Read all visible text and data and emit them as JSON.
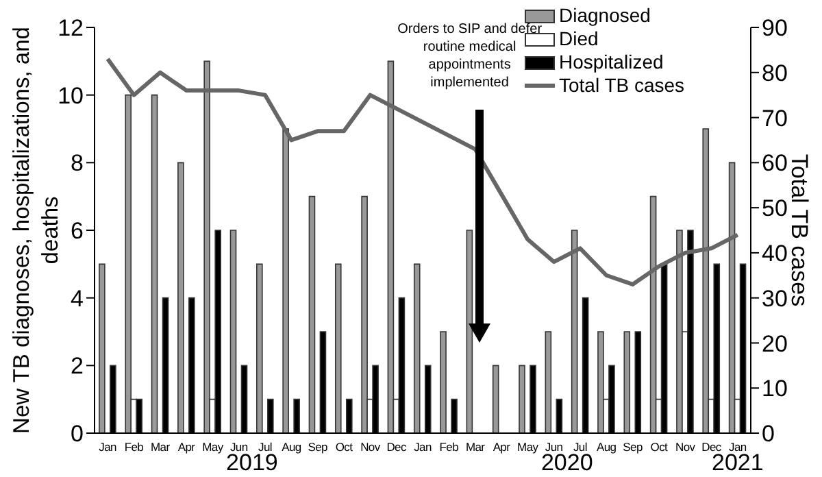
{
  "chart_data": {
    "type": "bar",
    "ylabel": "New TB diagnoses, hospitalizations, and deaths",
    "y2label": "Total TB cases",
    "categories": [
      "Jan",
      "Feb",
      "Mar",
      "Apr",
      "May",
      "Jun",
      "Jul",
      "Aug",
      "Sep",
      "Oct",
      "Nov",
      "Dec",
      "Jan",
      "Feb",
      "Mar",
      "Apr",
      "May",
      "Jun",
      "Jul",
      "Aug",
      "Sep",
      "Oct",
      "Nov",
      "Dec",
      "Jan"
    ],
    "series": [
      {
        "name": "Diagnosed",
        "color": "#999999",
        "values": [
          5,
          10,
          10,
          8,
          11,
          6,
          5,
          9,
          7,
          5,
          7,
          11,
          5,
          3,
          6,
          2,
          2,
          3,
          6,
          3,
          3,
          7,
          6,
          9,
          8
        ]
      },
      {
        "name": "Died",
        "color": "#ffffff",
        "values": [
          0,
          1,
          0,
          0,
          1,
          0,
          0,
          0,
          0,
          0,
          1,
          1,
          0,
          0,
          0,
          0,
          0,
          0,
          0,
          1,
          0,
          1,
          3,
          1,
          1
        ]
      },
      {
        "name": "Hospitalized",
        "color": "#000000",
        "values": [
          2,
          1,
          4,
          4,
          6,
          2,
          1,
          1,
          3,
          1,
          2,
          4,
          2,
          1,
          0,
          0,
          2,
          1,
          4,
          2,
          3,
          5,
          6,
          5,
          5
        ]
      },
      {
        "name": "Total TB cases",
        "type": "line",
        "axis": "y2",
        "color": "#666666",
        "values": [
          83,
          75,
          80,
          76,
          76,
          76,
          75,
          65,
          67,
          67,
          75,
          72,
          69,
          66,
          63,
          53,
          43,
          38,
          41,
          35,
          33,
          37,
          40,
          41,
          44
        ]
      }
    ],
    "ylim": [
      0,
      12
    ],
    "yticks": [
      0,
      2,
      4,
      6,
      8,
      10,
      12
    ],
    "y2lim": [
      0,
      90
    ],
    "y2ticks": [
      0,
      10,
      20,
      30,
      40,
      50,
      60,
      70,
      80,
      90
    ],
    "grid": false,
    "legend": "top right",
    "marker": "none",
    "line_style": "solid",
    "annotations": [
      "Orders to SIP and defer routine medical appointments implemented",
      "2019",
      "2020",
      "2021"
    ]
  }
}
